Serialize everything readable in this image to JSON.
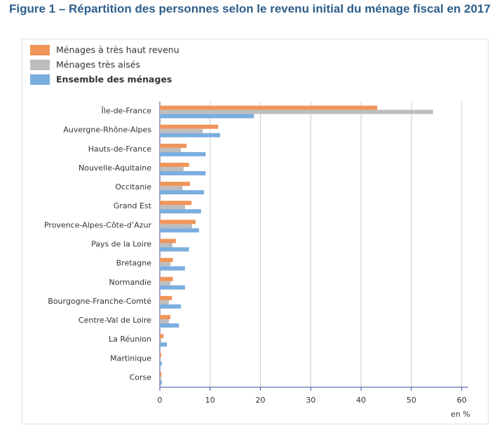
{
  "chart_data": {
    "type": "bar",
    "orientation": "horizontal",
    "title": "Figure 1 – Répartition des personnes selon le revenu initial du ménage fiscal en 2017",
    "x_label": "en %",
    "categories": [
      "Île-de-France",
      "Auvergne-Rhône-Alpes",
      "Hauts-de-France",
      "Nouvelle-Aquitaine",
      "Occitanie",
      "Grand Est",
      "Provence-Alpes-Côte-d’Azur",
      "Pays de la Loire",
      "Bretagne",
      "Normandie",
      "Bourgogne-Franche-Comté",
      "Centre-Val de Loire",
      "La Réunion",
      "Martinique",
      "Corse"
    ],
    "series": [
      {
        "name": "Ménages à très haut revenu",
        "color": "#f0955a",
        "values": [
          43.2,
          11.6,
          5.3,
          5.8,
          6.0,
          6.3,
          7.1,
          3.2,
          2.6,
          2.6,
          2.4,
          2.1,
          0.7,
          0.3,
          0.3
        ]
      },
      {
        "name": "Ménages très aisés",
        "color": "#bdbdbd",
        "values": [
          54.3,
          8.5,
          4.2,
          4.7,
          4.5,
          5.0,
          6.4,
          2.5,
          2.1,
          2.1,
          1.8,
          1.8,
          0.3,
          0.2,
          0.3
        ]
      },
      {
        "name": "Ensemble des ménages",
        "color": "#7aaede",
        "values": [
          18.7,
          12.0,
          9.1,
          9.1,
          8.8,
          8.2,
          7.8,
          5.8,
          5.0,
          5.0,
          4.2,
          3.8,
          1.4,
          0.4,
          0.4
        ]
      }
    ],
    "xlim": [
      0,
      61.3
    ],
    "xticks": [
      0,
      10,
      20,
      30,
      40,
      50,
      60
    ],
    "grid": true
  }
}
